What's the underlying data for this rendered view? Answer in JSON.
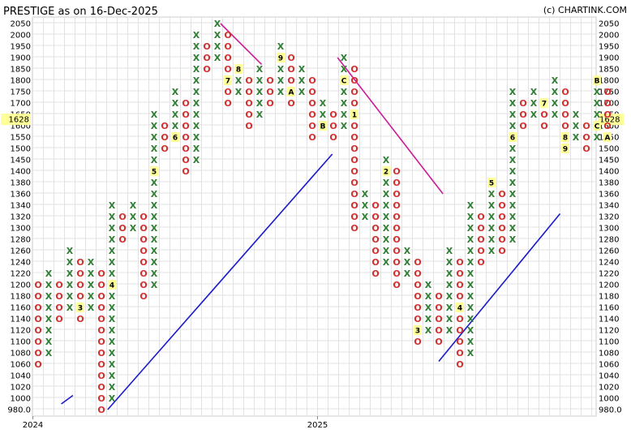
{
  "title": "PRESTIGE as on 16-Dec-2025",
  "copyright": "(c) CHARTINK.COM",
  "chart_data": {
    "type": "point-and-figure",
    "levels": [
      980,
      1000,
      1020,
      1040,
      1060,
      1080,
      1100,
      1120,
      1140,
      1160,
      1180,
      1200,
      1220,
      1240,
      1260,
      1280,
      1300,
      1320,
      1340,
      1360,
      1380,
      1400,
      1450,
      1500,
      1550,
      1600,
      1650,
      1700,
      1750,
      1800,
      1850,
      1900,
      1950,
      2000,
      2050
    ],
    "y_ticks": [
      "2050",
      "2000",
      "1950",
      "1900",
      "1850",
      "1800",
      "1750",
      "1700",
      "1650",
      "1600",
      "1550",
      "1500",
      "1450",
      "1400",
      "1380",
      "1360",
      "1340",
      "1320",
      "1300",
      "1280",
      "1260",
      "1240",
      "1220",
      "1200",
      "1180",
      "1160",
      "1140",
      "1120",
      "1100",
      "1080",
      "1060",
      "1040",
      "1020",
      "1000",
      "980.0"
    ],
    "current_price": "1628",
    "x_labels": [
      {
        "text": "2024",
        "col": 0
      },
      {
        "text": "2025",
        "col": 27
      }
    ],
    "columns": [
      {
        "type": "O",
        "top": 1200,
        "bottom": 1060
      },
      {
        "type": "X",
        "bottom": 1080,
        "top": 1220
      },
      {
        "type": "O",
        "top": 1200,
        "bottom": 1140
      },
      {
        "type": "X",
        "bottom": 1160,
        "top": 1260
      },
      {
        "type": "O",
        "top": 1240,
        "bottom": 1140,
        "marks": [
          {
            "level": 1160,
            "label": "3"
          }
        ]
      },
      {
        "type": "X",
        "bottom": 1160,
        "top": 1240
      },
      {
        "type": "O",
        "top": 1220,
        "bottom": 980
      },
      {
        "type": "X",
        "bottom": 1000,
        "top": 1340,
        "marks": [
          {
            "level": 1200,
            "label": "4"
          }
        ]
      },
      {
        "type": "O",
        "top": 1320,
        "bottom": 1280
      },
      {
        "type": "X",
        "bottom": 1300,
        "top": 1340
      },
      {
        "type": "O",
        "top": 1320,
        "bottom": 1180
      },
      {
        "type": "X",
        "bottom": 1200,
        "top": 1650,
        "marks": [
          {
            "level": 1400,
            "label": "5"
          }
        ]
      },
      {
        "type": "O",
        "top": 1600,
        "bottom": 1500
      },
      {
        "type": "X",
        "bottom": 1550,
        "top": 1750,
        "marks": [
          {
            "level": 1550,
            "label": "6"
          }
        ]
      },
      {
        "type": "O",
        "top": 1700,
        "bottom": 1400
      },
      {
        "type": "X",
        "bottom": 1450,
        "top": 2000
      },
      {
        "type": "O",
        "top": 1950,
        "bottom": 1850
      },
      {
        "type": "X",
        "bottom": 1900,
        "top": 2050
      },
      {
        "type": "O",
        "top": 2000,
        "bottom": 1700,
        "marks": [
          {
            "level": 1800,
            "label": "7"
          }
        ]
      },
      {
        "type": "X",
        "bottom": 1750,
        "top": 1850,
        "marks": [
          {
            "level": 1850,
            "label": "8"
          }
        ]
      },
      {
        "type": "O",
        "top": 1800,
        "bottom": 1600
      },
      {
        "type": "X",
        "bottom": 1650,
        "top": 1850
      },
      {
        "type": "O",
        "top": 1800,
        "bottom": 1700
      },
      {
        "type": "X",
        "bottom": 1750,
        "top": 1950,
        "marks": [
          {
            "level": 1900,
            "label": "9"
          }
        ]
      },
      {
        "type": "O",
        "top": 1900,
        "bottom": 1700,
        "marks": [
          {
            "level": 1750,
            "label": "A"
          }
        ]
      },
      {
        "type": "X",
        "bottom": 1750,
        "top": 1850
      },
      {
        "type": "O",
        "top": 1800,
        "bottom": 1550
      },
      {
        "type": "X",
        "bottom": 1600,
        "top": 1700,
        "marks": [
          {
            "level": 1600,
            "label": "B"
          }
        ]
      },
      {
        "type": "O",
        "top": 1650,
        "bottom": 1550
      },
      {
        "type": "X",
        "bottom": 1600,
        "top": 1900,
        "marks": [
          {
            "level": 1800,
            "label": "C"
          }
        ]
      },
      {
        "type": "O",
        "top": 1850,
        "bottom": 1300,
        "marks": [
          {
            "level": 1650,
            "label": "1"
          }
        ]
      },
      {
        "type": "X",
        "bottom": 1320,
        "top": 1360
      },
      {
        "type": "O",
        "top": 1340,
        "bottom": 1220
      },
      {
        "type": "X",
        "bottom": 1240,
        "top": 1450,
        "marks": [
          {
            "level": 1400,
            "label": "2"
          }
        ]
      },
      {
        "type": "O",
        "top": 1400,
        "bottom": 1200
      },
      {
        "type": "X",
        "bottom": 1220,
        "top": 1260
      },
      {
        "type": "O",
        "top": 1240,
        "bottom": 1100,
        "marks": [
          {
            "level": 1120,
            "label": "3"
          }
        ]
      },
      {
        "type": "X",
        "bottom": 1120,
        "top": 1200
      },
      {
        "type": "O",
        "top": 1180,
        "bottom": 1100
      },
      {
        "type": "X",
        "bottom": 1120,
        "top": 1260
      },
      {
        "type": "O",
        "top": 1240,
        "bottom": 1060,
        "marks": [
          {
            "level": 1160,
            "label": "4"
          }
        ]
      },
      {
        "type": "X",
        "bottom": 1080,
        "top": 1340
      },
      {
        "type": "O",
        "top": 1320,
        "bottom": 1240
      },
      {
        "type": "X",
        "bottom": 1260,
        "top": 1380,
        "marks": [
          {
            "level": 1380,
            "label": "5"
          }
        ]
      },
      {
        "type": "O",
        "top": 1360,
        "bottom": 1260
      },
      {
        "type": "X",
        "bottom": 1280,
        "top": 1750,
        "marks": [
          {
            "level": 1550,
            "label": "6"
          }
        ]
      },
      {
        "type": "O",
        "top": 1700,
        "bottom": 1600
      },
      {
        "type": "X",
        "bottom": 1650,
        "top": 1750
      },
      {
        "type": "O",
        "top": 1700,
        "bottom": 1600,
        "marks": [
          {
            "level": 1700,
            "label": "7"
          }
        ]
      },
      {
        "type": "X",
        "bottom": 1650,
        "top": 1800
      },
      {
        "type": "O",
        "top": 1750,
        "bottom": 1500,
        "marks": [
          {
            "level": 1550,
            "label": "8"
          },
          {
            "level": 1500,
            "label": "9"
          }
        ]
      },
      {
        "type": "X",
        "bottom": 1550,
        "top": 1650
      },
      {
        "type": "O",
        "top": 1600,
        "bottom": 1500
      },
      {
        "type": "X",
        "bottom": 1550,
        "top": 1800,
        "marks": [
          {
            "level": 1800,
            "label": "B"
          },
          {
            "level": 1600,
            "label": "C"
          }
        ]
      },
      {
        "type": "O",
        "top": 1750,
        "bottom": 1550,
        "marks": [
          {
            "level": 1550,
            "label": "A"
          }
        ]
      }
    ],
    "trendlines": [
      {
        "color": "#1a1acc",
        "from": {
          "col": 2.2,
          "level": 990
        },
        "to": {
          "col": 3.3,
          "level": 1005
        }
      },
      {
        "color": "#1a1acc",
        "from": {
          "col": 6.6,
          "level": 980
        },
        "to": {
          "col": 27.9,
          "level": 1475
        }
      },
      {
        "color": "#cc1a99",
        "from": {
          "col": 17.3,
          "level": 2060
        },
        "to": {
          "col": 21.2,
          "level": 1870
        }
      },
      {
        "color": "#cc1a99",
        "from": {
          "col": 28.4,
          "level": 1900
        },
        "to": {
          "col": 38.4,
          "level": 1360
        }
      },
      {
        "color": "#1a1acc",
        "from": {
          "col": 38.0,
          "level": 1065
        },
        "to": {
          "col": 49.5,
          "level": 1325
        }
      }
    ]
  }
}
